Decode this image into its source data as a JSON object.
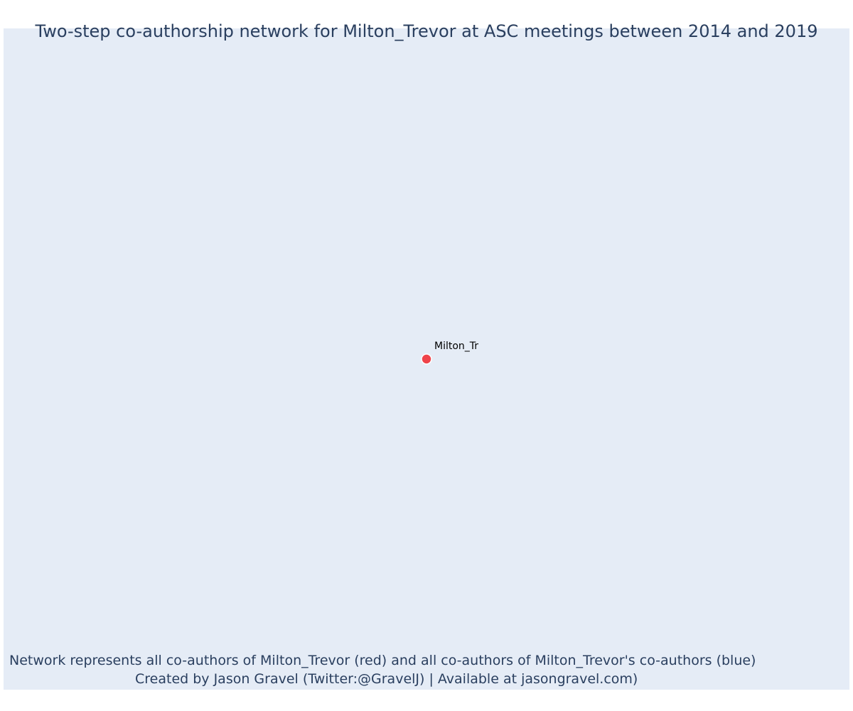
{
  "chart_data": {
    "type": "scatter",
    "title": "Two-step co-authorship network for Milton_Trevor at ASC meetings between 2014 and 2019",
    "nodes": [
      {
        "label": "Milton_Tr",
        "x": 0,
        "y": 0,
        "color": "#ef434a"
      }
    ],
    "edges": [],
    "xlim": [
      -1,
      1
    ],
    "ylim": [
      -1,
      1
    ],
    "grid": false,
    "caption": [
      "Network represents all co-authors of Milton_Trevor (red) and all co-authors of Milton_Trevor's co-authors (blue)",
      "Created by Jason Gravel (Twitter:@GravelJ) | Available at jasongravel.com)"
    ]
  },
  "colors": {
    "plot_background": "#e5ecf6",
    "text": "#2a3f5f",
    "focal_node": "#ef434a"
  }
}
